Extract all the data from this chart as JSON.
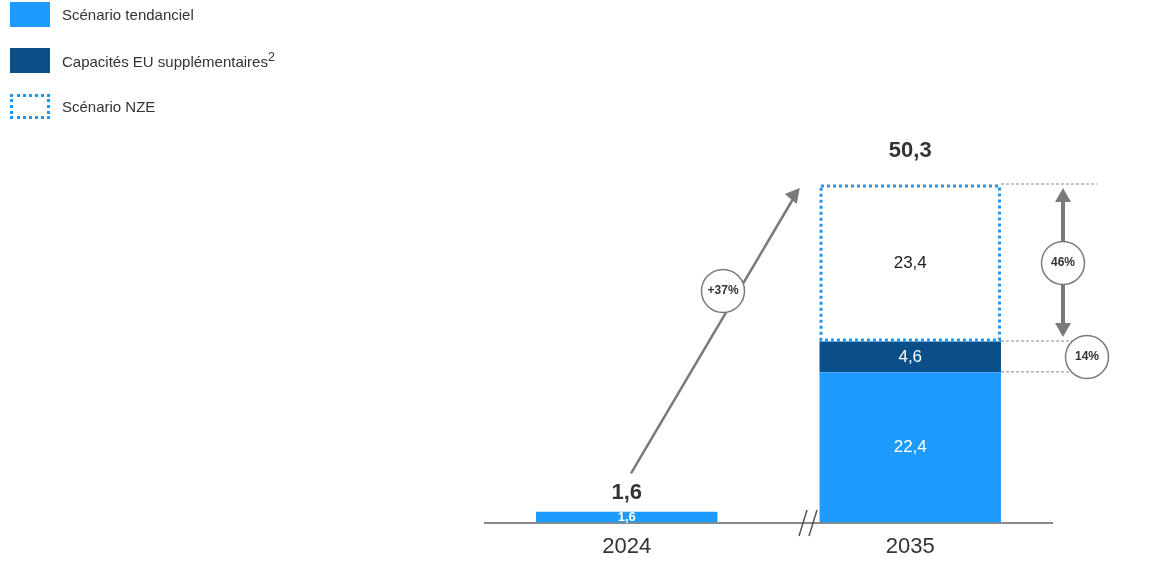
{
  "chart_data": {
    "type": "bar",
    "stacked": true,
    "categories": [
      "2024",
      "2035"
    ],
    "series": [
      {
        "name": "Scénario tendanciel",
        "color": "#1e9bff",
        "values": [
          1.6,
          22.4
        ],
        "value_labels": [
          "1,6",
          "22,4"
        ]
      },
      {
        "name": "Capacités EU supplémentaires$^{2}$",
        "color": "#0b4f8a",
        "values": [
          null,
          4.6
        ],
        "value_labels": [
          null,
          "4,6"
        ]
      },
      {
        "name": "Scénario NZE",
        "color": "#2196f3",
        "line_style": "dotted",
        "values": [
          null,
          23.4
        ],
        "value_labels": [
          null,
          "23,4"
        ]
      }
    ],
    "totals": [
      "1,6",
      "50,3"
    ],
    "annotations": [
      "+37%",
      "46%",
      "14%"
    ],
    "legend": "top left",
    "tick_labels": "x"
  }
}
